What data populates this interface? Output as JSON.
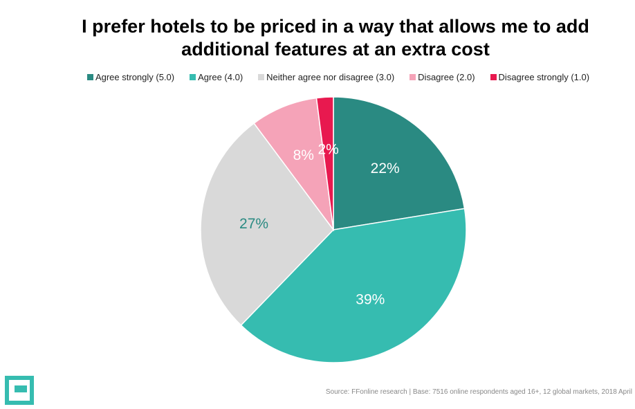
{
  "chart_data": {
    "type": "pie",
    "title": "I prefer hotels to be priced in a way that allows me to add additional features at an extra cost",
    "categories": [
      "Agree strongly (5.0)",
      "Agree (4.0)",
      "Neither agree nor disagree (3.0)",
      "Disagree (2.0)",
      "Disagree strongly (1.0)"
    ],
    "values": [
      22,
      39,
      27,
      8,
      2
    ],
    "value_labels": [
      "22%",
      "39%",
      "27%",
      "8%",
      "2%"
    ],
    "colors": [
      "#2a8a82",
      "#36bcb0",
      "#d9d9d9",
      "#f5a3b8",
      "#e8194f"
    ],
    "label_colors": [
      "#ffffff",
      "#ffffff",
      "#2a8a82",
      "#ffffff",
      "#ffffff"
    ],
    "source": "Source: FFonline research | Base: 7516 online respondents aged 16+, 12 global markets, 2018 April"
  }
}
